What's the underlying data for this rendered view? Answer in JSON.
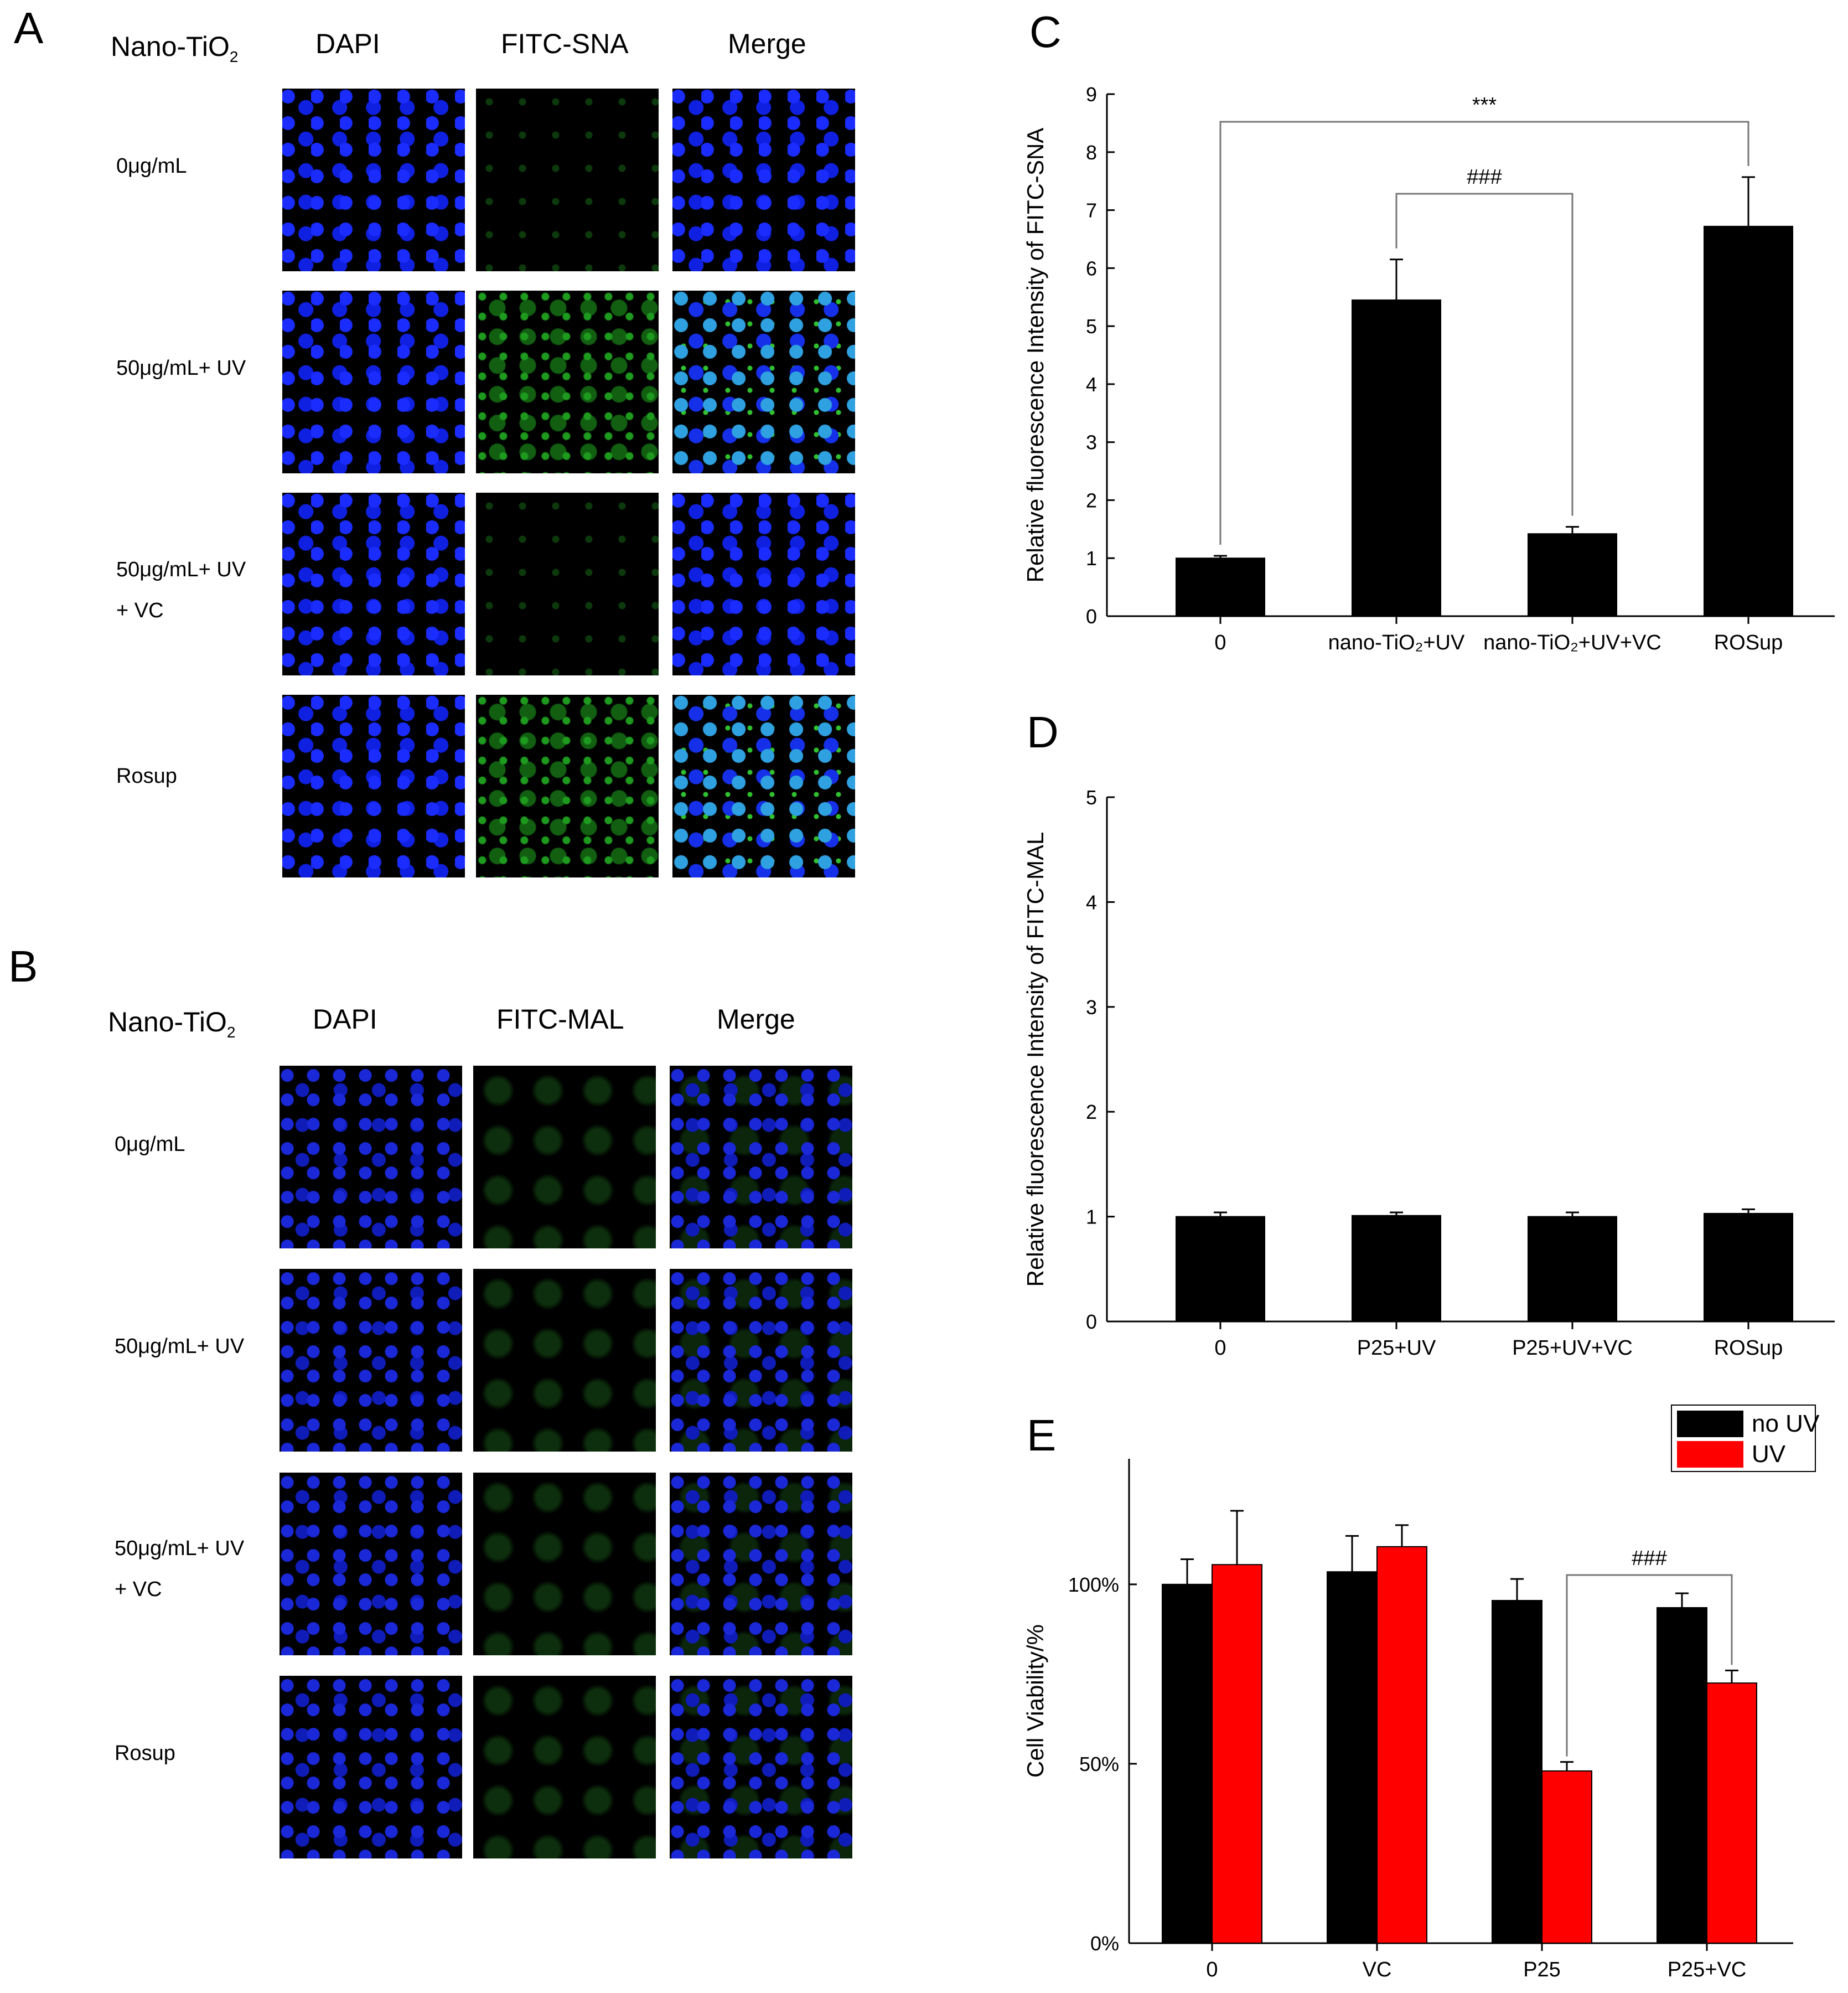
{
  "panels": {
    "A": {
      "letter": "A",
      "headers": {
        "group": "Nano-TiO",
        "group_sub": "2",
        "c1": "DAPI",
        "c2": "FITC-SNA",
        "c3": "Merge"
      },
      "rows": [
        "0μg/mL",
        "50μg/mL+ UV",
        "50μg/mL+ UV\n+ VC",
        "Rosup"
      ]
    },
    "B": {
      "letter": "B",
      "headers": {
        "group": "Nano-TiO",
        "group_sub": "2",
        "c1": "DAPI",
        "c2": "FITC-MAL",
        "c3": "Merge"
      },
      "rows": [
        "0μg/mL",
        "50μg/mL+ UV",
        "50μg/mL+ UV\n+ VC",
        "Rosup"
      ]
    }
  },
  "colors": {
    "bar_black": "#000000",
    "bar_red": "#ff0000"
  },
  "chart_data": [
    {
      "panel": "C",
      "type": "bar",
      "categories": [
        "0",
        "nano-TiO₂+UV",
        "nano-TiO₂+UV+VC",
        "ROSup"
      ],
      "values": [
        1.0,
        5.45,
        1.42,
        6.72
      ],
      "errors": [
        0.04,
        0.7,
        0.12,
        0.85
      ],
      "ylabel": "Relative fluorescence Intensity of FITC-SNA",
      "ylim": [
        0,
        9
      ],
      "yticks": [
        "0",
        "1",
        "2",
        "3",
        "4",
        "5",
        "6",
        "7",
        "8",
        "9"
      ],
      "annotations": [
        {
          "text": "***",
          "from": 0,
          "to": 3
        },
        {
          "text": "###",
          "from": 1,
          "to": 2
        }
      ]
    },
    {
      "panel": "D",
      "type": "bar",
      "categories": [
        "0",
        "P25+UV",
        "P25+UV+VC",
        "ROSup"
      ],
      "values": [
        1.0,
        1.01,
        1.0,
        1.03
      ],
      "errors": [
        0.04,
        0.03,
        0.04,
        0.04
      ],
      "ylabel": "Relative fluorescence Intensity of FITC-MAL",
      "ylim": [
        0,
        5
      ],
      "yticks": [
        "0",
        "1",
        "2",
        "3",
        "4",
        "5"
      ]
    },
    {
      "panel": "E",
      "type": "bar",
      "categories": [
        "0",
        "VC",
        "P25",
        "P25+VC"
      ],
      "series": [
        {
          "name": "no UV",
          "values": [
            100,
            103.5,
            95.5,
            93.5
          ],
          "errors": [
            7,
            10,
            6,
            4
          ]
        },
        {
          "name": "UV",
          "values": [
            105.5,
            110.5,
            48,
            72.5
          ],
          "errors": [
            15,
            6,
            2.5,
            3.5
          ]
        }
      ],
      "ylabel": "Cell Viability/%",
      "ylim": [
        0,
        135
      ],
      "yticks": [
        "0%",
        "50%",
        "100%"
      ],
      "legend_position": "top-right",
      "annotations": [
        {
          "text": "###",
          "from": 2,
          "to": 3
        }
      ]
    }
  ]
}
